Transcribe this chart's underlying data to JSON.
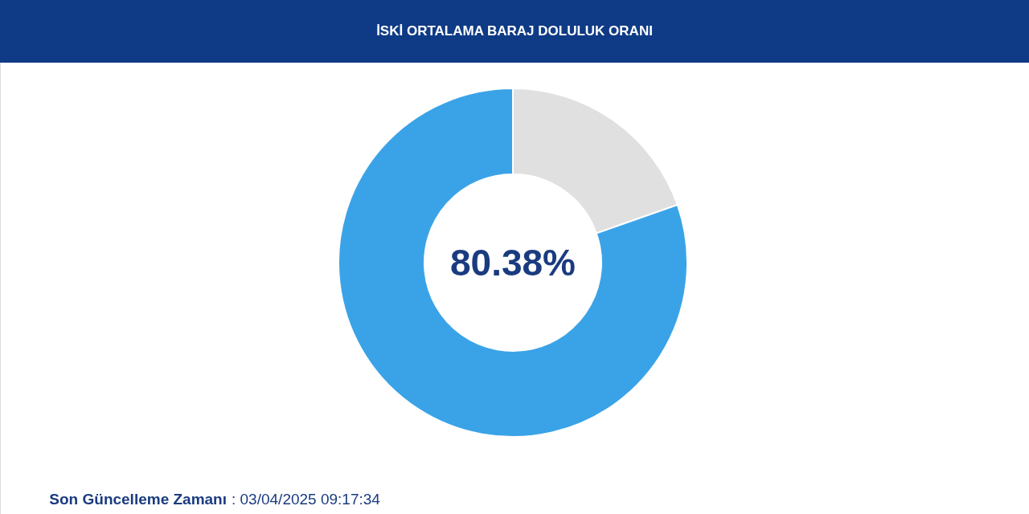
{
  "chart_data": {
    "type": "donut",
    "title": "İSKİ ORTALAMA BARAJ DOLULUK ORANI",
    "categories": [
      null,
      null
    ],
    "values": [
      19.62,
      80.38
    ],
    "colors": [
      "#e0e0e0",
      "#3aa3e8"
    ],
    "value_labels": [
      null,
      "80.38%"
    ],
    "legend": false,
    "annotations": [
      "Son Güncelleme Zamanı",
      ": 03/04/2025 09:17:34"
    ]
  }
}
